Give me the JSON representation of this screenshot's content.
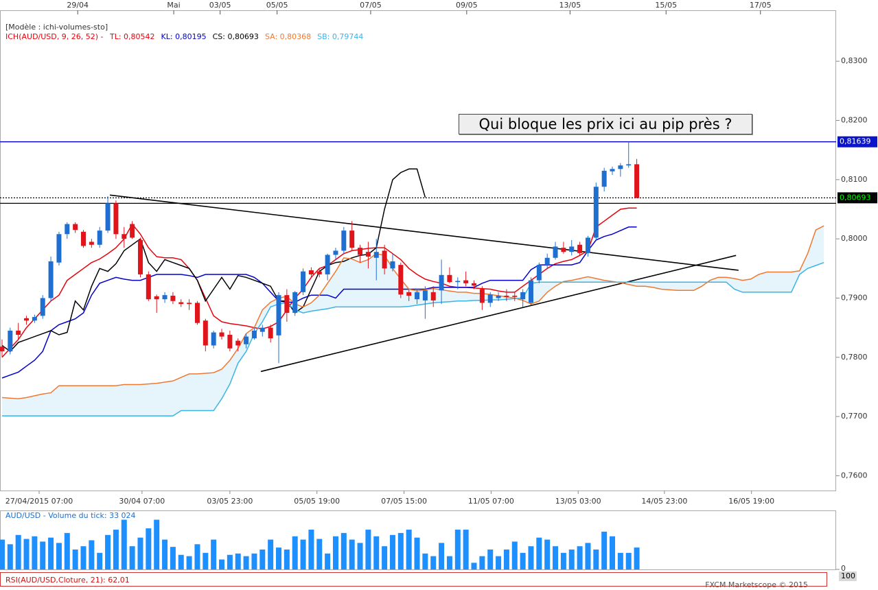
{
  "chart_data": [
    {
      "type": "candlestick",
      "header": "[Modèle : ichi-volumes-sto]",
      "legend_title": "ICH(AUD/USD, 9, 26, 52) -",
      "annotation": "Qui bloque les prix ici au pip près ?",
      "xlim": [
        -0.25,
        102.5
      ],
      "ylim": [
        0.7575,
        0.8386
      ],
      "yticks": [
        {
          "value": 0.76,
          "label": "0,7600"
        },
        {
          "value": 0.77,
          "label": "0,7700"
        },
        {
          "value": 0.78,
          "label": "0,7800"
        },
        {
          "value": 0.79,
          "label": "0,7900"
        },
        {
          "value": 0.8,
          "label": "0,8000"
        },
        {
          "value": 0.81,
          "label": "0,8100"
        },
        {
          "value": 0.82,
          "label": "0,8200"
        },
        {
          "value": 0.83,
          "label": "0,8300"
        }
      ],
      "xticks": [
        {
          "value": 4.56,
          "label": "27/04/2015 07:00"
        },
        {
          "value": 17.2,
          "label": "30/04 07:00"
        },
        {
          "value": 28.0,
          "label": "03/05 23:00"
        },
        {
          "value": 38.7,
          "label": "05/05 19:00"
        },
        {
          "value": 49.4,
          "label": "07/05 15:00"
        },
        {
          "value": 60.1,
          "label": "11/05 07:00"
        },
        {
          "value": 70.8,
          "label": "13/05 03:00"
        },
        {
          "value": 81.4,
          "label": "14/05 23:00"
        },
        {
          "value": 92.1,
          "label": "16/05 19:00"
        }
      ],
      "top_ticks": [
        {
          "value": 9.3,
          "label": "29/04"
        },
        {
          "value": 21.1,
          "label": "Mai"
        },
        {
          "value": 26.8,
          "label": "03/05"
        },
        {
          "value": 33.8,
          "label": "05/05"
        },
        {
          "value": 45.3,
          "label": "07/05"
        },
        {
          "value": 57.1,
          "label": "09/05"
        },
        {
          "value": 69.8,
          "label": "13/05"
        },
        {
          "value": 81.6,
          "label": "15/05"
        },
        {
          "value": 93.2,
          "label": "17/05"
        }
      ],
      "up_color": "#1f6fd1",
      "down_color": "#e0141b",
      "cloud_color": "#e6f5fb",
      "open": [
        0.7818,
        0.781,
        0.7845,
        0.7866,
        0.7862,
        0.787,
        0.79,
        0.796,
        0.8008,
        0.8025,
        0.8012,
        0.7995,
        0.799,
        0.8014,
        0.806,
        0.8008,
        0.8025,
        0.7998,
        0.794,
        0.7903,
        0.7898,
        0.7904,
        0.7893,
        0.7892,
        0.7892,
        0.7862,
        0.782,
        0.7842,
        0.7838,
        0.7828,
        0.7822,
        0.7832,
        0.7843,
        0.785,
        0.7837,
        0.7905,
        0.7875,
        0.791,
        0.7947,
        0.7945,
        0.794,
        0.7973,
        0.798,
        0.8014,
        0.7985,
        0.7978,
        0.7968,
        0.798,
        0.795,
        0.7956,
        0.791,
        0.7898,
        0.7896,
        0.791,
        0.7913,
        0.7939,
        0.7927,
        0.793,
        0.7925,
        0.7915,
        0.7892,
        0.79,
        0.7904,
        0.7904,
        0.7898,
        0.7892,
        0.793,
        0.7956,
        0.7968,
        0.7985,
        0.7978,
        0.799,
        0.7976,
        0.8002,
        0.8088,
        0.8114,
        0.8118,
        0.8124,
        0.8126
      ],
      "high": [
        0.783,
        0.785,
        0.7858,
        0.787,
        0.7872,
        0.7905,
        0.797,
        0.8012,
        0.8028,
        0.8028,
        0.8015,
        0.8,
        0.802,
        0.8072,
        0.8065,
        0.802,
        0.803,
        0.8002,
        0.7945,
        0.7906,
        0.791,
        0.791,
        0.7898,
        0.7898,
        0.7895,
        0.7865,
        0.7845,
        0.7848,
        0.7845,
        0.7832,
        0.784,
        0.785,
        0.7855,
        0.7855,
        0.791,
        0.7915,
        0.7912,
        0.795,
        0.7952,
        0.795,
        0.7975,
        0.7985,
        0.802,
        0.803,
        0.799,
        0.7995,
        0.8,
        0.799,
        0.7975,
        0.796,
        0.7915,
        0.7915,
        0.792,
        0.792,
        0.7965,
        0.7952,
        0.7935,
        0.7945,
        0.793,
        0.792,
        0.791,
        0.791,
        0.7915,
        0.791,
        0.7915,
        0.7935,
        0.796,
        0.7975,
        0.7995,
        0.7995,
        0.7998,
        0.7995,
        0.8005,
        0.8095,
        0.812,
        0.8122,
        0.8128,
        0.8164,
        0.8135
      ],
      "low": [
        0.78,
        0.7805,
        0.783,
        0.7855,
        0.7858,
        0.7865,
        0.7895,
        0.7955,
        0.8,
        0.801,
        0.7985,
        0.7985,
        0.7985,
        0.801,
        0.8,
        0.7985,
        0.8,
        0.7935,
        0.7895,
        0.7875,
        0.7892,
        0.789,
        0.7885,
        0.788,
        0.7855,
        0.781,
        0.7815,
        0.783,
        0.781,
        0.781,
        0.7815,
        0.783,
        0.7835,
        0.7825,
        0.779,
        0.786,
        0.787,
        0.7905,
        0.7935,
        0.7935,
        0.793,
        0.7965,
        0.7975,
        0.798,
        0.796,
        0.795,
        0.793,
        0.794,
        0.7945,
        0.79,
        0.7895,
        0.789,
        0.7865,
        0.7885,
        0.789,
        0.7925,
        0.7915,
        0.792,
        0.7915,
        0.788,
        0.7885,
        0.7895,
        0.7895,
        0.7895,
        0.7885,
        0.7888,
        0.7925,
        0.795,
        0.7965,
        0.7975,
        0.7972,
        0.7972,
        0.797,
        0.7998,
        0.808,
        0.8108,
        0.8105,
        0.812,
        0.8069
      ],
      "close": [
        0.781,
        0.7845,
        0.7838,
        0.7862,
        0.7868,
        0.79,
        0.7962,
        0.8008,
        0.8025,
        0.8015,
        0.7988,
        0.799,
        0.8014,
        0.806,
        0.8008,
        0.8,
        0.8002,
        0.794,
        0.7898,
        0.7898,
        0.7905,
        0.7895,
        0.789,
        0.789,
        0.7858,
        0.782,
        0.7842,
        0.7835,
        0.7815,
        0.782,
        0.7835,
        0.7845,
        0.785,
        0.7832,
        0.7905,
        0.7875,
        0.791,
        0.7945,
        0.794,
        0.794,
        0.7973,
        0.798,
        0.8014,
        0.7985,
        0.7973,
        0.797,
        0.7978,
        0.795,
        0.7962,
        0.7906,
        0.7904,
        0.791,
        0.7913,
        0.7896,
        0.7939,
        0.7927,
        0.7929,
        0.7925,
        0.7921,
        0.7892,
        0.7906,
        0.7904,
        0.7902,
        0.7902,
        0.791,
        0.793,
        0.7956,
        0.7968,
        0.7987,
        0.7978,
        0.7987,
        0.7976,
        0.8002,
        0.8088,
        0.8115,
        0.8118,
        0.8124,
        0.8126,
        0.8069
      ],
      "series": [
        {
          "name": "TL: 0,80542",
          "color": "#e8000b",
          "values": [
            0.78,
            0.7815,
            0.783,
            0.785,
            0.7865,
            0.788,
            0.7895,
            0.7905,
            0.793,
            0.794,
            0.795,
            0.796,
            0.7966,
            0.7975,
            0.7985,
            0.8,
            0.8025,
            0.8008,
            0.7985,
            0.797,
            0.7968,
            0.7968,
            0.7965,
            0.795,
            0.793,
            0.79,
            0.787,
            0.786,
            0.7857,
            0.7855,
            0.7853,
            0.785,
            0.7848,
            0.7852,
            0.786,
            0.788,
            0.79,
            0.7915,
            0.7935,
            0.795,
            0.7955,
            0.7965,
            0.7975,
            0.798,
            0.7982,
            0.7984,
            0.7985,
            0.7985,
            0.7975,
            0.7965,
            0.795,
            0.794,
            0.7932,
            0.7928,
            0.7925,
            0.792,
            0.7918,
            0.7918,
            0.7917,
            0.7916,
            0.7915,
            0.7912,
            0.791,
            0.791,
            0.792,
            0.793,
            0.794,
            0.795,
            0.7958,
            0.7962,
            0.7965,
            0.7972,
            0.798,
            0.802,
            0.803,
            0.804,
            0.805,
            0.8052,
            0.8052
          ]
        },
        {
          "name": "KL: 0,80195",
          "color": "#0000cc",
          "values": [
            0.7765,
            0.777,
            0.7775,
            0.7785,
            0.7795,
            0.781,
            0.7845,
            0.7855,
            0.786,
            0.7865,
            0.7875,
            0.7905,
            0.7925,
            0.793,
            0.7935,
            0.7932,
            0.793,
            0.793,
            0.7935,
            0.794,
            0.794,
            0.794,
            0.794,
            0.7938,
            0.7935,
            0.794,
            0.794,
            0.794,
            0.794,
            0.794,
            0.794,
            0.7935,
            0.7925,
            0.791,
            0.7895,
            0.7893,
            0.7893,
            0.79,
            0.7905,
            0.7905,
            0.7905,
            0.79,
            0.7915,
            0.7915,
            0.7915,
            0.7915,
            0.7915,
            0.7915,
            0.7915,
            0.7915,
            0.7915,
            0.7915,
            0.7915,
            0.7918,
            0.7918,
            0.7918,
            0.7918,
            0.7918,
            0.7918,
            0.7925,
            0.793,
            0.793,
            0.793,
            0.793,
            0.793,
            0.7948,
            0.7956,
            0.7956,
            0.7956,
            0.7956,
            0.7956,
            0.796,
            0.798,
            0.7998,
            0.8004,
            0.8008,
            0.8014,
            0.802,
            0.802
          ]
        },
        {
          "name": "CS: 0,80693",
          "color": "#000000",
          "values": [
            0.782,
            0.781,
            0.7825,
            0.783,
            0.7835,
            0.784,
            0.7845,
            0.7838,
            0.7842,
            0.7895,
            0.788,
            0.792,
            0.795,
            0.7945,
            0.7958,
            0.798,
            0.799,
            0.8,
            0.796,
            0.7945,
            0.7965,
            0.796,
            0.7955,
            0.795,
            0.793,
            0.7895,
            0.7915,
            0.7935,
            0.7915,
            0.7938,
            0.7935,
            0.793,
            0.7925,
            0.792,
            0.7895,
            0.7895,
            0.7875,
            0.7885,
            0.7915,
            0.7945,
            0.7955,
            0.796,
            0.7962,
            0.7968,
            0.7972,
            0.7974,
            0.7985,
            0.805,
            0.81,
            0.8112,
            0.8118,
            0.8118,
            0.807
          ]
        },
        {
          "name": "SA: 0,80368",
          "color": "#f07830",
          "values": [
            0.7732,
            0.7731,
            0.773,
            0.7732,
            0.7735,
            0.7738,
            0.774,
            0.7752,
            0.7752,
            0.7752,
            0.7752,
            0.7752,
            0.7752,
            0.7752,
            0.7752,
            0.7754,
            0.7754,
            0.7754,
            0.7755,
            0.7756,
            0.7758,
            0.776,
            0.7766,
            0.7772,
            0.7772,
            0.7773,
            0.7774,
            0.778,
            0.7795,
            0.7815,
            0.784,
            0.785,
            0.788,
            0.7893,
            0.79,
            0.7903,
            0.789,
            0.7885,
            0.7892,
            0.7905,
            0.7925,
            0.7945,
            0.7968,
            0.7966,
            0.796,
            0.7965,
            0.7975,
            0.7972,
            0.795,
            0.7932,
            0.7915,
            0.7912,
            0.7914,
            0.7916,
            0.7914,
            0.7912,
            0.791,
            0.791,
            0.7908,
            0.7908,
            0.7906,
            0.7904,
            0.7902,
            0.79,
            0.7896,
            0.789,
            0.7895,
            0.791,
            0.792,
            0.7928,
            0.793,
            0.7933,
            0.7936,
            0.7933,
            0.793,
            0.7928,
            0.7926,
            0.7923,
            0.792,
            0.792,
            0.7918,
            0.7915,
            0.7914,
            0.7913,
            0.7913,
            0.7913,
            0.792,
            0.793,
            0.7935,
            0.7935,
            0.7933,
            0.793,
            0.7932,
            0.794,
            0.7944,
            0.7944,
            0.7944,
            0.7944,
            0.7946,
            0.7975,
            0.8015,
            0.8022
          ]
        },
        {
          "name": "SB: 0,79744",
          "color": "#3ab4e6",
          "values": [
            0.7701,
            0.7701,
            0.7701,
            0.7701,
            0.7701,
            0.7701,
            0.7701,
            0.7701,
            0.7701,
            0.7701,
            0.7701,
            0.7701,
            0.7701,
            0.7701,
            0.7701,
            0.7701,
            0.7701,
            0.7701,
            0.7701,
            0.7701,
            0.7701,
            0.7701,
            0.771,
            0.771,
            0.771,
            0.771,
            0.771,
            0.773,
            0.7755,
            0.779,
            0.781,
            0.784,
            0.786,
            0.7885,
            0.789,
            0.7892,
            0.788,
            0.7875,
            0.7878,
            0.788,
            0.7882,
            0.7885,
            0.7885,
            0.7885,
            0.7885,
            0.7885,
            0.7885,
            0.7885,
            0.7885,
            0.7885,
            0.7886,
            0.7888,
            0.789,
            0.7892,
            0.7893,
            0.7894,
            0.7895,
            0.7895,
            0.7896,
            0.7896,
            0.7897,
            0.7897,
            0.7898,
            0.7899,
            0.79,
            0.7925,
            0.7927,
            0.7927,
            0.7927,
            0.7927,
            0.7927,
            0.7927,
            0.7927,
            0.7927,
            0.7927,
            0.7927,
            0.7927,
            0.7927,
            0.7927,
            0.7927,
            0.7927,
            0.7927,
            0.7927,
            0.7927,
            0.7927,
            0.7927,
            0.7927,
            0.7927,
            0.7927,
            0.7927,
            0.7915,
            0.791,
            0.791,
            0.791,
            0.791,
            0.791,
            0.791,
            0.791,
            0.794,
            0.795,
            0.7955,
            0.796
          ]
        }
      ],
      "levels": [
        {
          "value": 0.81639,
          "label": "0,81639",
          "color": "#0000cc",
          "tag_color": "#0a14c8",
          "text_color": "#ffffff"
        },
        {
          "value": 0.80693,
          "label": "0,80693",
          "color": "#000000",
          "style": "dotted",
          "tag_color": "#000000",
          "text_color": "#00ff00"
        },
        {
          "value": 0.806,
          "color": "#000000"
        }
      ],
      "trendlines": [
        {
          "x": [
            13.25,
            90.5
          ],
          "y": [
            0.8074,
            0.7947
          ]
        },
        {
          "x": [
            31.8,
            90.2
          ],
          "y": [
            0.7776,
            0.7972
          ]
        }
      ]
    },
    {
      "type": "bar",
      "title": "AUD/USD - Volume du tick: 33 024",
      "color": "#1e8fff",
      "ylim": [
        0,
        88000
      ],
      "yticks": [
        0
      ],
      "values": [
        45000,
        38000,
        52000,
        46000,
        50000,
        42000,
        48000,
        40000,
        55000,
        30000,
        35000,
        44000,
        25000,
        52000,
        60000,
        75000,
        35000,
        48000,
        62000,
        75000,
        45000,
        34000,
        22000,
        20000,
        38000,
        25000,
        45000,
        15000,
        22000,
        24000,
        20000,
        24000,
        30000,
        45000,
        33000,
        30000,
        50000,
        45000,
        60000,
        46000,
        24000,
        50000,
        55000,
        45000,
        40000,
        60000,
        50000,
        35000,
        52000,
        55000,
        60000,
        48000,
        24000,
        20000,
        40000,
        20000,
        60000,
        60000,
        10000,
        20000,
        30000,
        20000,
        30000,
        42000,
        25000,
        35000,
        48000,
        45000,
        35000,
        25000,
        30000,
        35000,
        40000,
        30000,
        57000,
        50000,
        25000,
        25000,
        33024
      ]
    },
    {
      "type": "line",
      "title": "RSI(AUD/USD,Cloture, 21): 62,01",
      "yticks": [
        100
      ]
    }
  ],
  "footer": "FXCM Marketscope © 2015"
}
